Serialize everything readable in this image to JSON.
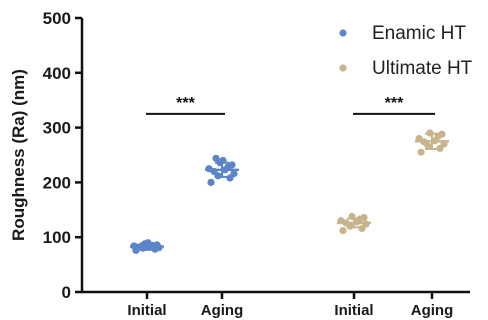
{
  "chart_data": {
    "type": "scatter",
    "ylabel": "Roughness (Ra) (nm)",
    "xlabel": "",
    "ylim": [
      0,
      500
    ],
    "yticks": [
      0,
      100,
      200,
      300,
      400,
      500
    ],
    "categories": [
      "Initial",
      "Aging",
      "Initial",
      "Aging"
    ],
    "legend_position": "top-right",
    "grid": false,
    "series": [
      {
        "name": "Enamic HT",
        "color": "#5b85c8",
        "groups": [
          {
            "category": "Initial",
            "mean": 83,
            "sd": 6,
            "points": [
              76,
              78,
              80,
              81,
              82,
              83,
              84,
              85,
              86,
              88,
              90
            ]
          },
          {
            "category": "Aging",
            "mean": 223,
            "sd": 13,
            "points": [
              200,
              208,
              212,
              216,
              220,
              223,
              225,
              228,
              232,
              236,
              240,
              244
            ]
          }
        ]
      },
      {
        "name": "Ultimate HT",
        "color": "#c8b48c",
        "groups": [
          {
            "category": "Initial",
            "mean": 126,
            "sd": 8,
            "points": [
              112,
              116,
              120,
              124,
              126,
              128,
              130,
              133,
              136,
              138
            ]
          },
          {
            "category": "Aging",
            "mean": 275,
            "sd": 14,
            "points": [
              255,
              262,
              266,
              270,
              274,
              276,
              280,
              284,
              288,
              290
            ]
          }
        ]
      }
    ],
    "annotations": [
      {
        "text": "***",
        "from": 0,
        "to": 1,
        "y": 325
      },
      {
        "text": "***",
        "from": 2,
        "to": 3,
        "y": 325
      }
    ]
  }
}
